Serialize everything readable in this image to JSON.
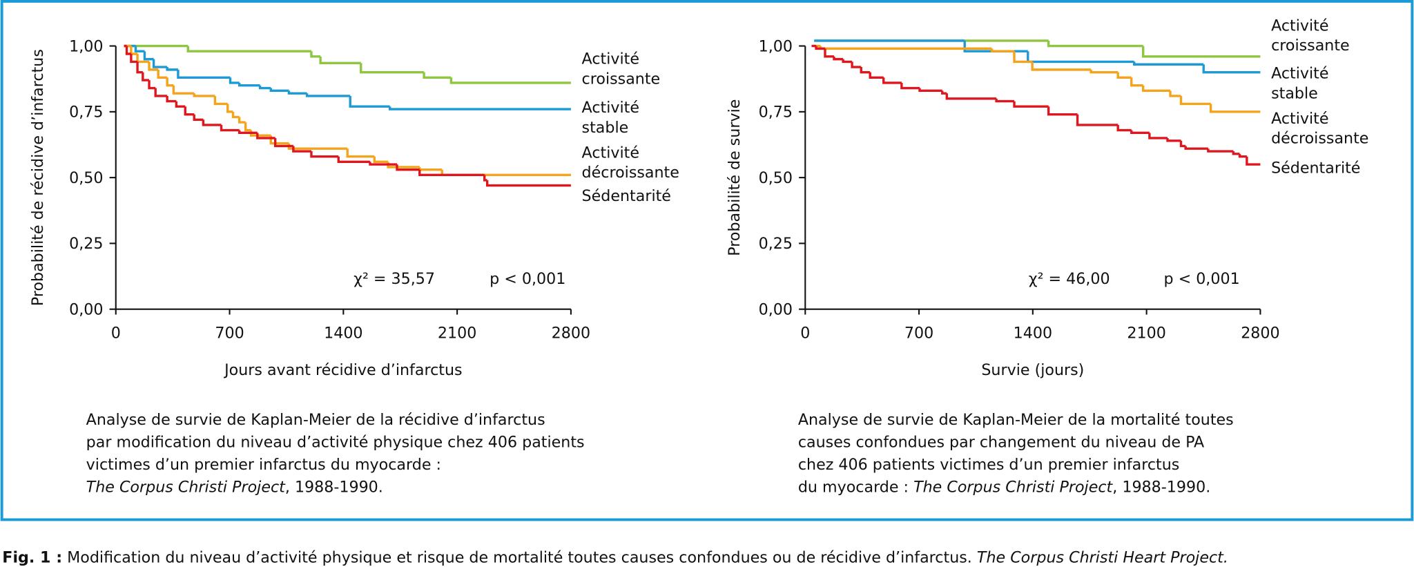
{
  "chart_data": [
    {
      "type": "line",
      "step": true,
      "y_label": "Probabilité de récidive d’infarctus",
      "x_label": "Jours avant récidive d’infarctus",
      "xlim": [
        0,
        2800
      ],
      "xticks": [
        0,
        700,
        1400,
        2100,
        2800
      ],
      "ylim": [
        0,
        1
      ],
      "yticks": [
        {
          "value": 0,
          "label": "0,00"
        },
        {
          "value": 0.25,
          "label": "0,25"
        },
        {
          "value": 0.5,
          "label": "0,50"
        },
        {
          "value": 0.75,
          "label": "0,75"
        },
        {
          "value": 1,
          "label": "1,00"
        }
      ],
      "annotations": [
        "χ² = 35,57",
        "p < 0,001"
      ],
      "caption": [
        [
          {
            "text": "Analyse de survie de Kaplan-Meier de la récidive d’infarctus"
          }
        ],
        [
          {
            "text": "par modification du niveau d’activité physique chez 406 patients"
          }
        ],
        [
          {
            "text": "victimes d’un premier infarctus du myocarde :"
          }
        ],
        [
          {
            "text": "The Corpus Christi Project",
            "italic": true
          },
          {
            "text": ", 1988-1990."
          }
        ]
      ],
      "series": [
        {
          "name": "Activité croissante",
          "color": "#8dc63f",
          "x": [
            50,
            444,
            1203,
            1259,
            1508,
            1896,
            2063,
            2800
          ],
          "values": [
            1.0,
            0.98,
            0.96,
            0.935,
            0.9,
            0.88,
            0.86,
            0.86
          ]
        },
        {
          "name": "Activité stable",
          "color": "#1b9ad6",
          "x": [
            50,
            122,
            177,
            233,
            316,
            383,
            704,
            760,
            887,
            954,
            1065,
            1176,
            1442,
            1686,
            2800
          ],
          "values": [
            1.0,
            0.98,
            0.95,
            0.92,
            0.91,
            0.88,
            0.86,
            0.85,
            0.84,
            0.83,
            0.82,
            0.81,
            0.77,
            0.76,
            0.76
          ]
        },
        {
          "name": "Activité décroissante",
          "color": "#f5a31a",
          "x": [
            50,
            94,
            133,
            205,
            261,
            316,
            355,
            482,
            610,
            688,
            721,
            760,
            798,
            832,
            954,
            1065,
            1425,
            1591,
            1675,
            1869,
            2007,
            2800
          ],
          "values": [
            1.0,
            0.97,
            0.94,
            0.91,
            0.88,
            0.85,
            0.82,
            0.81,
            0.78,
            0.75,
            0.73,
            0.71,
            0.68,
            0.66,
            0.63,
            0.61,
            0.58,
            0.56,
            0.54,
            0.53,
            0.51,
            0.51
          ]
        },
        {
          "name": "Sédentarité",
          "color": "#e0161e",
          "x": [
            50,
            67,
            94,
            133,
            166,
            205,
            244,
            316,
            372,
            427,
            482,
            538,
            649,
            760,
            871,
            981,
            1092,
            1203,
            1370,
            1564,
            1730,
            1869,
            2268,
            2285,
            2800
          ],
          "values": [
            1.0,
            0.97,
            0.94,
            0.9,
            0.87,
            0.84,
            0.81,
            0.79,
            0.77,
            0.74,
            0.72,
            0.7,
            0.68,
            0.67,
            0.65,
            0.62,
            0.6,
            0.58,
            0.56,
            0.55,
            0.53,
            0.51,
            0.49,
            0.47,
            0.47
          ]
        }
      ]
    },
    {
      "type": "line",
      "step": true,
      "y_label": "Probabilité de survie",
      "x_label": "Survie (jours)",
      "xlim": [
        0,
        2800
      ],
      "xticks": [
        0,
        700,
        1400,
        2100,
        2800
      ],
      "ylim": [
        0,
        1
      ],
      "yticks": [
        {
          "value": 0,
          "label": "0,00"
        },
        {
          "value": 0.25,
          "label": "0,25"
        },
        {
          "value": 0.5,
          "label": "0,50"
        },
        {
          "value": 0.75,
          "label": "0,75"
        },
        {
          "value": 1,
          "label": "1,00"
        }
      ],
      "annotations": [
        "χ² = 46,00",
        "p < 0,001"
      ],
      "caption": [
        [
          {
            "text": "Analyse de survie de Kaplan-Meier de la mortalité toutes"
          }
        ],
        [
          {
            "text": "causes confondues par changement du niveau de PA"
          }
        ],
        [
          {
            "text": "chez 406 patients victimes d’un premier infarctus"
          }
        ],
        [
          {
            "text": "du myocarde : "
          },
          {
            "text": "The Corpus Christi Project",
            "italic": true
          },
          {
            "text": ", 1988-1990."
          }
        ]
      ],
      "series": [
        {
          "name": "Activité croissante",
          "color": "#8dc63f",
          "x": [
            55,
            1497,
            2079,
            2800
          ],
          "values": [
            1.02,
            1.0,
            0.96,
            0.96
          ]
        },
        {
          "name": "Activité stable",
          "color": "#1b9ad6",
          "x": [
            55,
            981,
            1370,
            2024,
            2451,
            2800
          ],
          "values": [
            1.02,
            0.98,
            0.94,
            0.93,
            0.9,
            0.9
          ]
        },
        {
          "name": "Activité décroissante",
          "color": "#f5a31a",
          "x": [
            55,
            94,
            1148,
            1286,
            1397,
            1758,
            1924,
            2007,
            2079,
            2246,
            2312,
            2495,
            2800
          ],
          "values": [
            1.0,
            0.99,
            0.98,
            0.94,
            0.91,
            0.9,
            0.88,
            0.85,
            0.83,
            0.81,
            0.78,
            0.75,
            0.75
          ]
        },
        {
          "name": "Sédentarité",
          "color": "#e0161e",
          "x": [
            39,
            67,
            122,
            177,
            233,
            288,
            344,
            399,
            482,
            593,
            704,
            843,
            871,
            1148,
            1176,
            1286,
            1497,
            1675,
            1924,
            2007,
            2118,
            2229,
            2312,
            2340,
            2479,
            2634,
            2673,
            2717,
            2800
          ],
          "values": [
            1.0,
            0.99,
            0.96,
            0.95,
            0.94,
            0.92,
            0.9,
            0.88,
            0.86,
            0.84,
            0.83,
            0.82,
            0.8,
            0.8,
            0.79,
            0.77,
            0.74,
            0.7,
            0.68,
            0.67,
            0.65,
            0.64,
            0.62,
            0.61,
            0.6,
            0.59,
            0.58,
            0.55,
            0.55
          ]
        }
      ]
    }
  ],
  "figure_caption": {
    "label": "Fig. 1 :",
    "text": "Modification du niveau d’activité physique et risque de mortalité toutes causes confondues ou de récidive d’infarctus.",
    "italic": "The Corpus Christi Heart Project."
  }
}
